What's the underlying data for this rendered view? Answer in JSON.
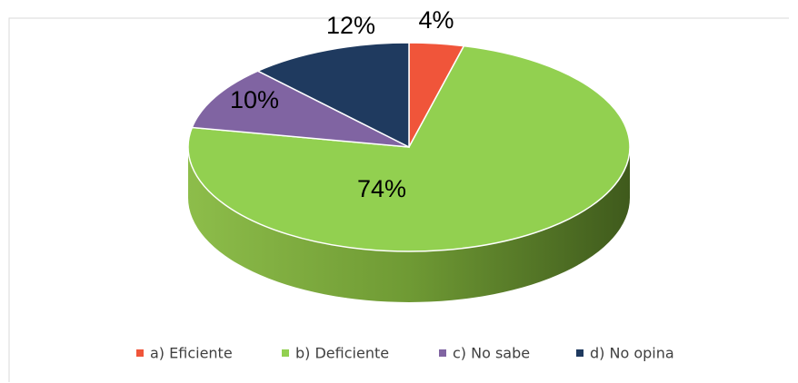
{
  "chart_data": {
    "type": "pie",
    "categories": [
      "a) Eficiente",
      "b) Deficiente",
      "c) No sabe",
      "d) No opina"
    ],
    "values": [
      4,
      74,
      10,
      12
    ],
    "value_labels": [
      "4%",
      "74%",
      "10%",
      "12%"
    ],
    "colors": [
      "#f0553a",
      "#92d050",
      "#8064a2",
      "#1f3a5f"
    ],
    "legend": "bottom"
  }
}
